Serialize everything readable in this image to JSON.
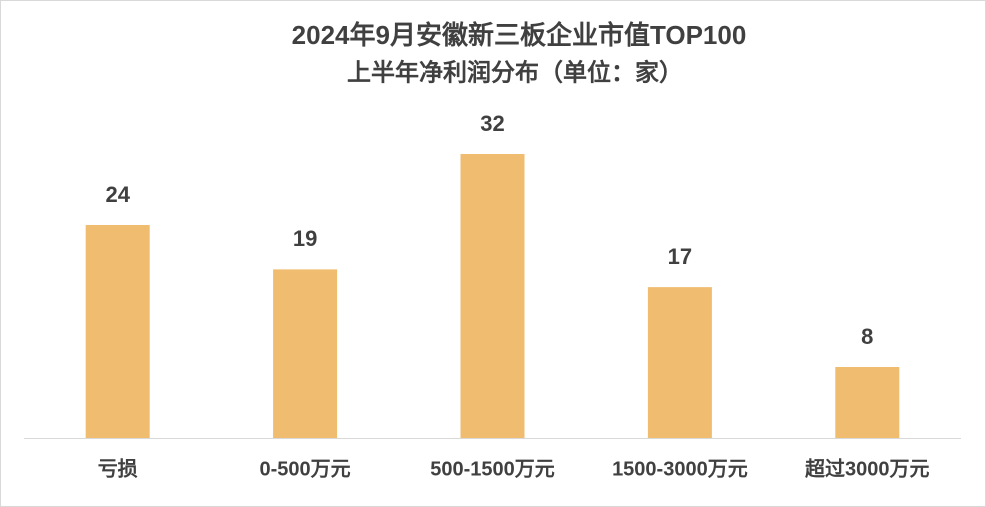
{
  "chart_data": {
    "type": "bar",
    "title": "2024年9月安徽新三板企业市值TOP100",
    "subtitle": "上半年净利润分布（单位：家）",
    "categories": [
      "亏损",
      "0-500万元",
      "500-1500万元",
      "1500-3000万元",
      "超过3000万元"
    ],
    "values": [
      24,
      19,
      32,
      17,
      8
    ],
    "color": "#f0bc70"
  }
}
